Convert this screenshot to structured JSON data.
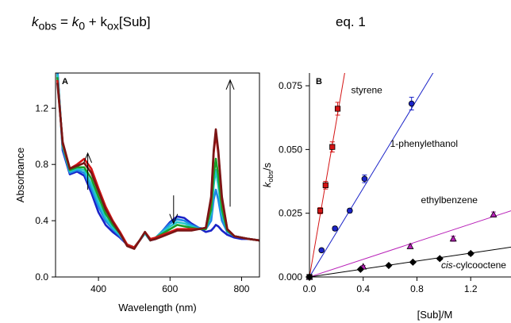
{
  "equation": {
    "k": "k",
    "obs": "obs",
    "eq": " = ",
    "k0_k": "k",
    "k0_sub": "0",
    "plus": " + k",
    "ox": "ox",
    "sub": "[Sub]",
    "label": "eq. 1"
  },
  "chart_data": [
    {
      "type": "line",
      "panel_label": "A",
      "xlabel": "Wavelength (nm)",
      "ylabel": "Absorbance",
      "xlim": [
        280,
        850
      ],
      "ylim": [
        0,
        1.45
      ],
      "xticks": [
        400,
        600,
        800
      ],
      "yticks": [
        0.0,
        0.4,
        0.8,
        1.2
      ],
      "ytick_labels": [
        "0.0",
        "0.4",
        "0.8",
        "1.2"
      ],
      "arrows": [
        {
          "x": 370,
          "y_from": 0.62,
          "y_to": 0.88,
          "direction": "up"
        },
        {
          "x": 610,
          "y_from": 0.58,
          "y_to": 0.38,
          "direction": "down"
        },
        {
          "x": 768,
          "y_from": 0.5,
          "y_to": 1.4,
          "direction": "up"
        }
      ],
      "x": [
        285,
        300,
        320,
        340,
        360,
        380,
        400,
        420,
        440,
        460,
        480,
        500,
        515,
        530,
        545,
        560,
        580,
        600,
        620,
        640,
        660,
        680,
        700,
        715,
        722,
        728,
        735,
        745,
        760,
        780,
        800,
        820,
        850
      ],
      "series": [
        {
          "color": "#1a23c8",
          "values": [
            1.48,
            0.9,
            0.73,
            0.75,
            0.72,
            0.6,
            0.46,
            0.37,
            0.32,
            0.28,
            0.23,
            0.21,
            0.26,
            0.31,
            0.26,
            0.27,
            0.33,
            0.39,
            0.43,
            0.42,
            0.38,
            0.35,
            0.32,
            0.33,
            0.35,
            0.37,
            0.36,
            0.33,
            0.3,
            0.28,
            0.27,
            0.27,
            0.26
          ]
        },
        {
          "color": "#1e88e5",
          "values": [
            1.46,
            0.92,
            0.74,
            0.76,
            0.74,
            0.63,
            0.5,
            0.4,
            0.34,
            0.29,
            0.23,
            0.21,
            0.26,
            0.31,
            0.26,
            0.28,
            0.33,
            0.38,
            0.41,
            0.4,
            0.37,
            0.35,
            0.34,
            0.4,
            0.55,
            0.62,
            0.55,
            0.4,
            0.32,
            0.29,
            0.28,
            0.27,
            0.26
          ]
        },
        {
          "color": "#20c8c8",
          "values": [
            1.44,
            0.93,
            0.75,
            0.77,
            0.76,
            0.66,
            0.53,
            0.42,
            0.35,
            0.3,
            0.23,
            0.21,
            0.26,
            0.31,
            0.26,
            0.28,
            0.32,
            0.36,
            0.39,
            0.38,
            0.36,
            0.34,
            0.34,
            0.45,
            0.65,
            0.76,
            0.65,
            0.45,
            0.33,
            0.29,
            0.28,
            0.27,
            0.26
          ]
        },
        {
          "color": "#18a02a",
          "values": [
            1.42,
            0.94,
            0.76,
            0.78,
            0.78,
            0.7,
            0.57,
            0.45,
            0.37,
            0.31,
            0.23,
            0.21,
            0.26,
            0.32,
            0.26,
            0.28,
            0.31,
            0.34,
            0.37,
            0.36,
            0.35,
            0.34,
            0.34,
            0.48,
            0.72,
            0.84,
            0.72,
            0.48,
            0.33,
            0.29,
            0.28,
            0.27,
            0.26
          ]
        },
        {
          "color": "#d41414",
          "values": [
            1.4,
            0.95,
            0.77,
            0.8,
            0.84,
            0.77,
            0.63,
            0.5,
            0.4,
            0.32,
            0.23,
            0.21,
            0.26,
            0.32,
            0.27,
            0.28,
            0.3,
            0.32,
            0.34,
            0.34,
            0.34,
            0.34,
            0.35,
            0.55,
            0.88,
            1.02,
            0.88,
            0.55,
            0.34,
            0.29,
            0.28,
            0.27,
            0.26
          ]
        },
        {
          "color": "#7a1515",
          "values": [
            1.38,
            0.96,
            0.77,
            0.79,
            0.81,
            0.74,
            0.61,
            0.48,
            0.39,
            0.31,
            0.22,
            0.2,
            0.26,
            0.32,
            0.26,
            0.27,
            0.29,
            0.31,
            0.33,
            0.33,
            0.33,
            0.34,
            0.35,
            0.57,
            0.9,
            1.05,
            0.9,
            0.57,
            0.34,
            0.29,
            0.28,
            0.27,
            0.26
          ]
        }
      ]
    },
    {
      "type": "scatter",
      "panel_label": "B",
      "xlabel": "[Sub]/M",
      "ylabel_main": "k",
      "ylabel_sub": "obs",
      "ylabel_rest": "/s",
      "xlim": [
        0,
        1.5
      ],
      "ylim": [
        0,
        0.08
      ],
      "xticks": [
        0.0,
        0.4,
        0.8,
        1.2
      ],
      "xtick_labels": [
        "0.0",
        "0.4",
        "0.8",
        "1.2"
      ],
      "yticks": [
        0.0,
        0.025,
        0.05,
        0.075
      ],
      "ytick_labels": [
        "0.000",
        "0.025",
        "0.050",
        "0.075"
      ],
      "series": [
        {
          "name": "styrene",
          "color": "#d41414",
          "marker": "square",
          "slope": 0.305,
          "label_pos": [
            0.31,
            0.072
          ],
          "x": [
            0.0,
            0.08,
            0.12,
            0.17,
            0.21
          ],
          "y": [
            0.0,
            0.026,
            0.036,
            0.051,
            0.066
          ],
          "err": [
            0,
            0.0012,
            0.0015,
            0.002,
            0.0025
          ]
        },
        {
          "name": "1-phenylethanol",
          "color": "#1a23c8",
          "marker": "circle",
          "slope": 0.087,
          "label_pos": [
            0.6,
            0.051
          ],
          "x": [
            0.0,
            0.09,
            0.19,
            0.3,
            0.41,
            0.76
          ],
          "y": [
            0.0,
            0.0105,
            0.019,
            0.026,
            0.0385,
            0.068
          ],
          "err": [
            0,
            0.0006,
            0.0008,
            0.0008,
            0.0015,
            0.0025
          ]
        },
        {
          "name": "ethylbenzene",
          "color": "#b820b8",
          "marker": "triangle",
          "slope": 0.0173,
          "label_pos": [
            0.83,
            0.029
          ],
          "x": [
            0.0,
            0.4,
            0.75,
            1.07,
            1.37
          ],
          "y": [
            0.0,
            0.004,
            0.012,
            0.015,
            0.0245
          ],
          "err": [
            0,
            0.0005,
            0.0008,
            0.001,
            0.001
          ]
        },
        {
          "name": "cis-cylcooctene",
          "name_italic": "cis",
          "name_rest": "-cylcooctene",
          "color": "#000000",
          "marker": "diamond",
          "slope": 0.0078,
          "label_pos": [
            0.98,
            0.0035
          ],
          "x": [
            0.0,
            0.38,
            0.59,
            0.77,
            0.97,
            1.2
          ],
          "y": [
            0.0,
            0.003,
            0.0045,
            0.0058,
            0.0072,
            0.0092
          ],
          "err": [
            0,
            0.0004,
            0.0004,
            0.0004,
            0.0005,
            0.0006
          ]
        }
      ]
    }
  ]
}
